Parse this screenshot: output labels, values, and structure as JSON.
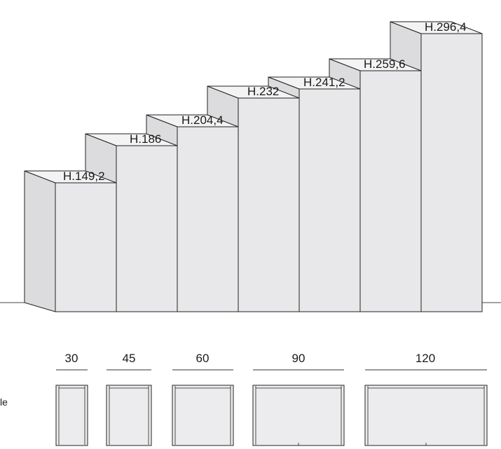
{
  "colors": {
    "front": "#e8e8ea",
    "top": "#f3f3f4",
    "side": "#dcdcde",
    "line": "#222222",
    "plan_fill": "#ececee"
  },
  "heights": [
    {
      "label": "H.149,2",
      "value": 149.2
    },
    {
      "label": "H.186",
      "value": 186
    },
    {
      "label": "H.204,4",
      "value": 204.4
    },
    {
      "label": "H.232",
      "value": 232
    },
    {
      "label": "H.241,2",
      "value": 241.2
    },
    {
      "label": "H.259,6",
      "value": 259.6
    },
    {
      "label": "H.296,4",
      "value": 296.4
    }
  ],
  "widths": [
    {
      "label": "30",
      "value": 30
    },
    {
      "label": "45",
      "value": 45
    },
    {
      "label": "60",
      "value": 60
    },
    {
      "label": "90",
      "value": 90
    },
    {
      "label": "120",
      "value": 120
    }
  ],
  "side_text": "le"
}
